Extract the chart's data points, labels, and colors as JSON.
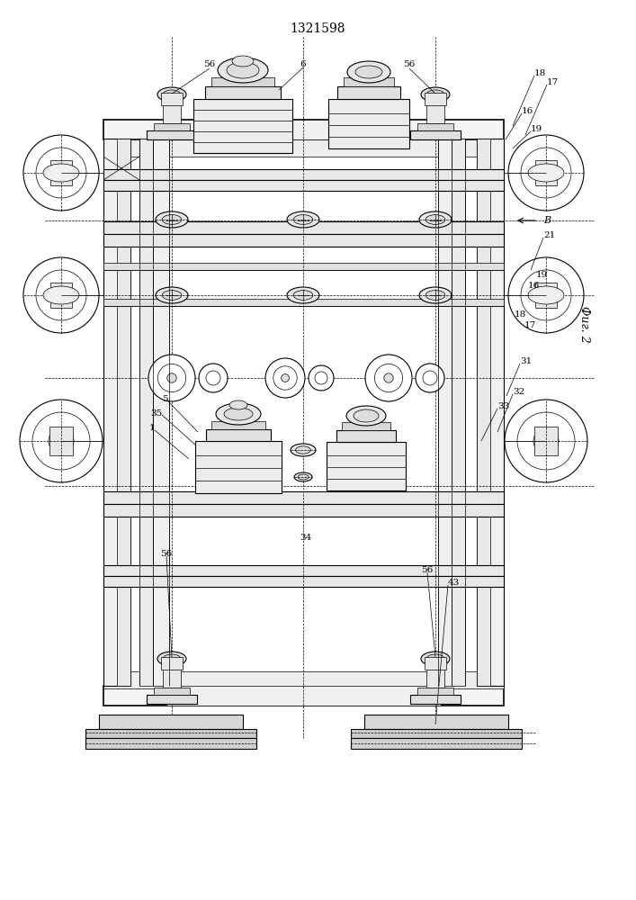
{
  "title": "1321598",
  "fig_label": "Фиг. 2",
  "view_label": "B",
  "bg_color": "#ffffff",
  "line_color": "#000000",
  "lw_main": 0.8,
  "lw_thin": 0.5,
  "lw_thick": 1.2
}
